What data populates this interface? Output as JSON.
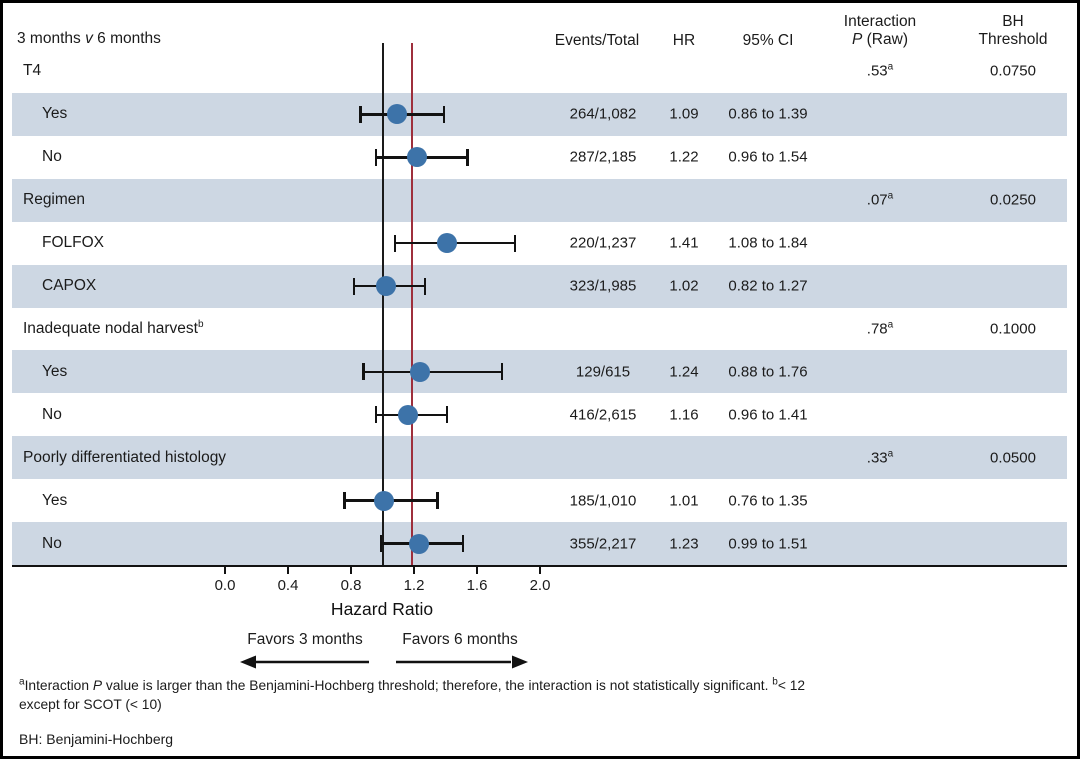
{
  "figure": {
    "title": {
      "pre": "3 months",
      "vs": "v",
      "post": "6 months"
    },
    "columns": {
      "events": "Events/Total",
      "hr": "HR",
      "ci": "95% CI",
      "interaction_line1": "Interaction",
      "interaction_p": "P",
      "interaction_raw": "(Raw)",
      "bh_line1": "BH",
      "bh_line2": "Threshold"
    }
  },
  "chart_data": {
    "type": "forest",
    "title": "3 months v 6 months",
    "xlabel": "Hazard Ratio",
    "x_ticks": [
      0.0,
      0.4,
      0.8,
      1.2,
      1.6,
      2.0
    ],
    "xlim": [
      0.0,
      2.2
    ],
    "grid": false,
    "favors_left": "Favors 3 months",
    "favors_right": "Favors 6 months",
    "marker_color": "#3d73a9",
    "band_color": "#cdd7e3",
    "reference_lines": [
      {
        "name": "null-line",
        "value": 1.0,
        "color": "#1a1a1a"
      },
      {
        "name": "overall-hr-line",
        "value": 1.19,
        "color": "#9e2f3c"
      }
    ],
    "rows": [
      {
        "label": "T4",
        "group": true,
        "shaded": false,
        "p_raw": ".53",
        "p_sup": "a",
        "bh": "0.0750"
      },
      {
        "label": "Yes",
        "shaded": true,
        "events": "264/1,082",
        "hr_text": "1.09",
        "ci_text": "0.86 to 1.39",
        "hr": 1.09,
        "lo": 0.86,
        "hi": 1.39
      },
      {
        "label": "No",
        "shaded": false,
        "events": "287/2,185",
        "hr_text": "1.22",
        "ci_text": "0.96 to 1.54",
        "hr": 1.22,
        "lo": 0.96,
        "hi": 1.54
      },
      {
        "label": "Regimen",
        "group": true,
        "shaded": true,
        "p_raw": ".07",
        "p_sup": "a",
        "bh": "0.0250"
      },
      {
        "label": "FOLFOX",
        "shaded": false,
        "events": "220/1,237",
        "hr_text": "1.41",
        "ci_text": "1.08 to 1.84",
        "hr": 1.41,
        "lo": 1.08,
        "hi": 1.84
      },
      {
        "label": "CAPOX",
        "shaded": true,
        "events": "323/1,985",
        "hr_text": "1.02",
        "ci_text": "0.82 to 1.27",
        "hr": 1.02,
        "lo": 0.82,
        "hi": 1.27
      },
      {
        "label": "Inadequate nodal harvest",
        "label_sup": "b",
        "group": true,
        "shaded": false,
        "p_raw": ".78",
        "p_sup": "a",
        "bh": "0.1000"
      },
      {
        "label": "Yes",
        "shaded": true,
        "events": "129/615",
        "hr_text": "1.24",
        "ci_text": "0.88 to 1.76",
        "hr": 1.24,
        "lo": 0.88,
        "hi": 1.76
      },
      {
        "label": "No",
        "shaded": false,
        "events": "416/2,615",
        "hr_text": "1.16",
        "ci_text": "0.96 to 1.41",
        "hr": 1.16,
        "lo": 0.96,
        "hi": 1.41
      },
      {
        "label": "Poorly differentiated histology",
        "group": true,
        "shaded": true,
        "p_raw": ".33",
        "p_sup": "a",
        "bh": "0.0500"
      },
      {
        "label": "Yes",
        "shaded": false,
        "events": "185/1,010",
        "hr_text": "1.01",
        "ci_text": "0.76 to 1.35",
        "hr": 1.01,
        "lo": 0.76,
        "hi": 1.35
      },
      {
        "label": "No",
        "shaded": true,
        "events": "355/2,217",
        "hr_text": "1.23",
        "ci_text": "0.99 to 1.51",
        "hr": 1.23,
        "lo": 0.99,
        "hi": 1.51
      }
    ]
  },
  "footnotes": {
    "sup_a": "a",
    "fn_part1": "Interaction ",
    "fn_p": "P",
    "fn_part2": " value is larger than the Benjamini-Hochberg threshold; therefore, the interaction is not statistically significant. ",
    "sup_b": "b",
    "fn_part3": "< 12 except for SCOT (< 10)",
    "abbrev": "BH: Benjamini-Hochberg"
  }
}
